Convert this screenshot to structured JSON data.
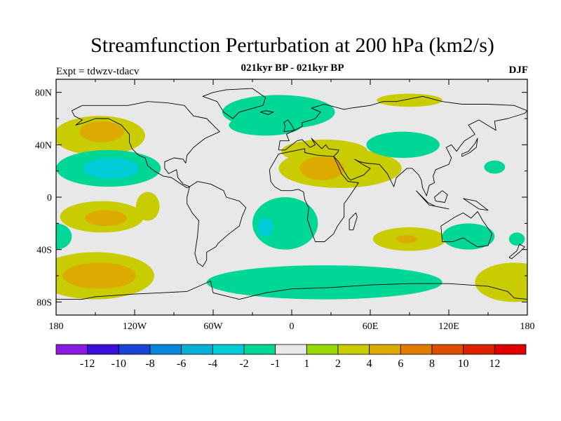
{
  "header": {
    "title": "Streamfunction Perturbation at 200 hPa (km2/s)",
    "subtitle": "021kyr BP - 021kyr BP",
    "left_label": "Expt = tdwzv-tdacv",
    "right_label": "DJF"
  },
  "chart_data": {
    "type": "heatmap",
    "title": "Streamfunction Perturbation at 200 hPa (km2/s)",
    "projection": "cylindrical equidistant",
    "xlim": [
      -180,
      180
    ],
    "ylim": [
      -90,
      90
    ],
    "x_ticks": [
      {
        "value": -180,
        "label": "180"
      },
      {
        "value": -120,
        "label": "120W"
      },
      {
        "value": -60,
        "label": "60W"
      },
      {
        "value": 0,
        "label": "0"
      },
      {
        "value": 60,
        "label": "60E"
      },
      {
        "value": 120,
        "label": "120E"
      },
      {
        "value": 180,
        "label": "180"
      }
    ],
    "y_ticks": [
      {
        "value": 80,
        "label": "80N"
      },
      {
        "value": 40,
        "label": "40N"
      },
      {
        "value": 0,
        "label": "0"
      },
      {
        "value": -40,
        "label": "40S"
      },
      {
        "value": -80,
        "label": "80S"
      }
    ],
    "colorbar": {
      "levels": [
        "-12",
        "-10",
        "-8",
        "-6",
        "-4",
        "-2",
        "-1",
        "1",
        "2",
        "4",
        "6",
        "8",
        "10",
        "12"
      ],
      "colors": [
        "#8a1adf",
        "#3a10d6",
        "#1a44d3",
        "#0a86d8",
        "#08b0d6",
        "#00ccd6",
        "#00d696",
        "#e8e8e8",
        "#96d800",
        "#c8cc00",
        "#dcaa00",
        "#e07c00",
        "#dc4e00",
        "#dc2200",
        "#e00000"
      ]
    },
    "background_color": "#e8e8e8",
    "regions": [
      {
        "name": "north-pacific-positive",
        "lon": -147,
        "lat": 47,
        "rlon": 35,
        "rlat": 15,
        "level": 2
      },
      {
        "name": "north-pacific-positive-core",
        "lon": -145,
        "lat": 50,
        "rlon": 17,
        "rlat": 8,
        "level": 4
      },
      {
        "name": "northeast-pacific-negative",
        "lon": -140,
        "lat": 22,
        "rlon": 40,
        "rlat": 14,
        "level": -1
      },
      {
        "name": "northeast-pacific-negative-core",
        "lon": -138,
        "lat": 22,
        "rlon": 21,
        "rlat": 8,
        "level": -2
      },
      {
        "name": "south-pacific-positive",
        "lon": -145,
        "lat": -15,
        "rlon": 32,
        "rlat": 12,
        "level": 2
      },
      {
        "name": "south-pacific-positive-core",
        "lon": -142,
        "lat": -16,
        "rlon": 16,
        "rlat": 6,
        "level": 4
      },
      {
        "name": "east-pacific-positive",
        "lon": -110,
        "lat": -7,
        "rlon": 9,
        "rlat": 11,
        "level": 2
      },
      {
        "name": "west-pacific-negative-edge",
        "lon": -180,
        "lat": -30,
        "rlon": 12,
        "rlat": 10,
        "level": -1
      },
      {
        "name": "southern-pacific-positive",
        "lon": -150,
        "lat": -60,
        "rlon": 45,
        "rlat": 18,
        "level": 2
      },
      {
        "name": "southern-pacific-positive-core",
        "lon": -147,
        "lat": -60,
        "rlon": 28,
        "rlat": 10,
        "level": 4
      },
      {
        "name": "arctic-atlantic-negative",
        "lon": -10,
        "lat": 65,
        "rlon": 43,
        "rlat": 13,
        "level": -1
      },
      {
        "name": "north-atlantic-negative",
        "lon": -20,
        "lat": 55,
        "rlon": 28,
        "rlat": 8,
        "level": -1
      },
      {
        "name": "south-atlantic-negative",
        "lon": -5,
        "lat": -20,
        "rlon": 25,
        "rlat": 20,
        "level": -1
      },
      {
        "name": "south-atlantic-negative-core",
        "lon": -20,
        "lat": -23,
        "rlon": 6,
        "rlat": 7,
        "level": -2
      },
      {
        "name": "mediterranean-positive",
        "lon": 25,
        "lat": 35,
        "rlon": 33,
        "rlat": 9,
        "level": 2
      },
      {
        "name": "north-africa-positive",
        "lon": 37,
        "lat": 22,
        "rlon": 47,
        "rlat": 15,
        "level": 2
      },
      {
        "name": "north-africa-positive-core",
        "lon": 23,
        "lat": 22,
        "rlon": 17,
        "rlat": 9,
        "level": 4
      },
      {
        "name": "siberia-negative",
        "lon": 85,
        "lat": 40,
        "rlon": 28,
        "rlat": 10,
        "level": -1
      },
      {
        "name": "arctic-asia-positive",
        "lon": 90,
        "lat": 74,
        "rlon": 25,
        "rlat": 5,
        "level": 2
      },
      {
        "name": "west-pacific-negative",
        "lon": 155,
        "lat": 23,
        "rlon": 8,
        "rlat": 5,
        "level": -1
      },
      {
        "name": "southern-ocean-negative",
        "lon": 25,
        "lat": -65,
        "rlon": 90,
        "rlat": 13,
        "level": -1
      },
      {
        "name": "indian-ocean-positive",
        "lon": 90,
        "lat": -32,
        "rlon": 28,
        "rlat": 9,
        "level": 2
      },
      {
        "name": "indian-ocean-positive-core",
        "lon": 88,
        "lat": -32,
        "rlon": 8,
        "rlat": 3,
        "level": 4
      },
      {
        "name": "australia-negative",
        "lon": 135,
        "lat": -30,
        "rlon": 20,
        "rlat": 10,
        "level": -1
      },
      {
        "name": "southwest-pacific-positive",
        "lon": 170,
        "lat": -65,
        "rlon": 30,
        "rlat": 15,
        "level": 2
      },
      {
        "name": "east-australia-negative",
        "lon": 172,
        "lat": -32,
        "rlon": 6,
        "rlat": 5,
        "level": -1
      }
    ]
  }
}
